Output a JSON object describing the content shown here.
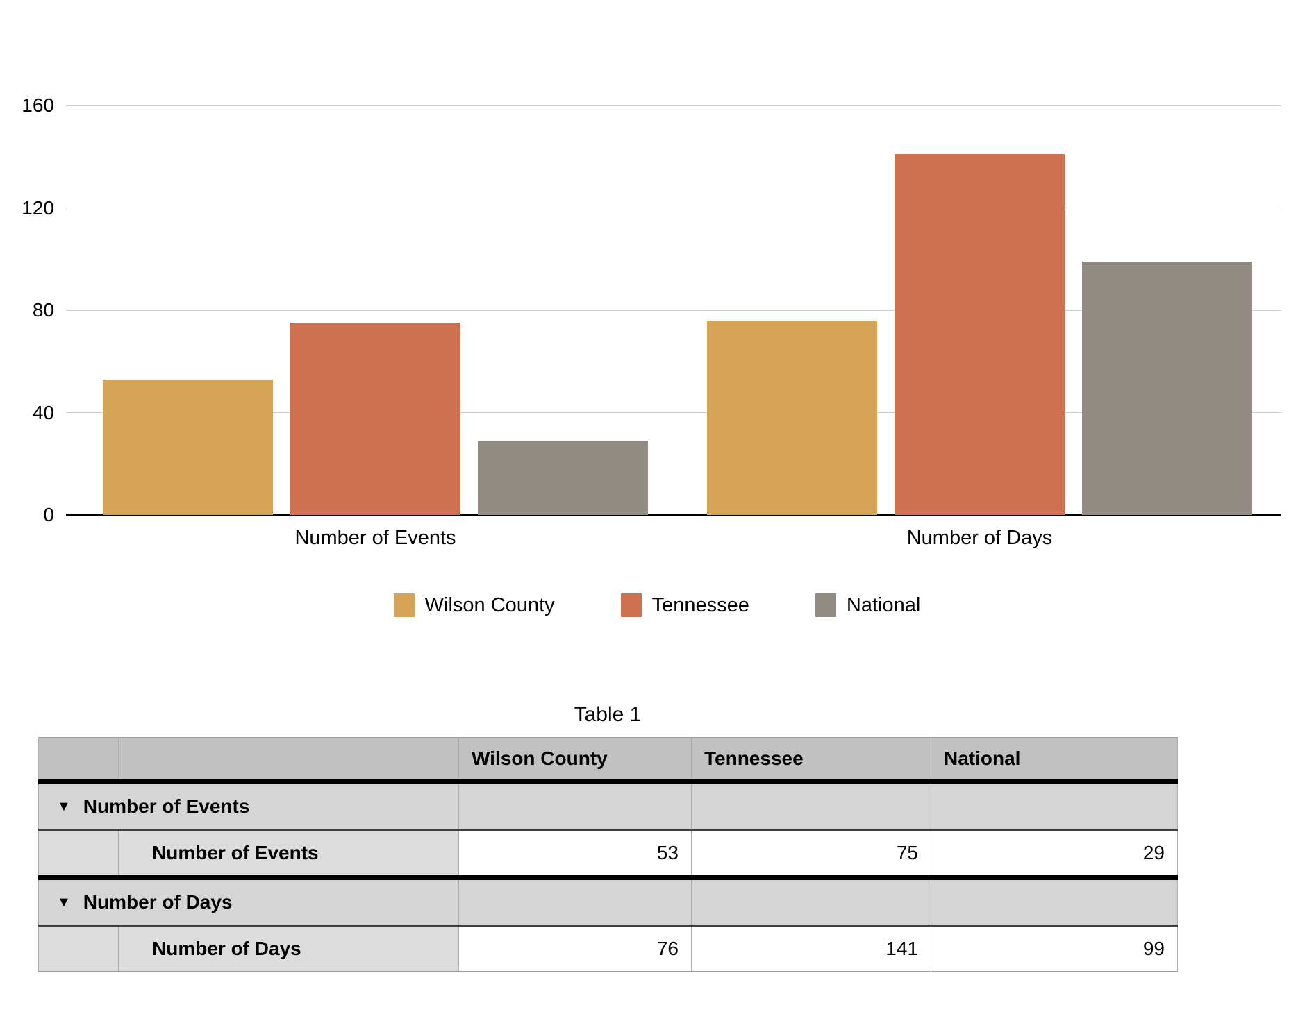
{
  "chart_data": {
    "type": "bar",
    "title": "",
    "xlabel": "",
    "ylabel": "",
    "categories": [
      "Number of Events",
      "Number of Days"
    ],
    "series": [
      {
        "name": "Wilson County",
        "color": "#D5A456",
        "values": [
          53,
          76
        ]
      },
      {
        "name": "Tennessee",
        "color": "#CD7150",
        "values": [
          75,
          141
        ]
      },
      {
        "name": "National",
        "color": "#928B82",
        "values": [
          29,
          99
        ]
      }
    ],
    "ylim": [
      0,
      160
    ],
    "yticks": [
      0,
      40,
      80,
      120,
      160
    ],
    "grid": true,
    "legend_position": "bottom"
  },
  "table": {
    "title": "Table 1",
    "disclosure_icon": "▼",
    "column_headers": [
      "Wilson County",
      "Tennessee",
      "National"
    ],
    "groups": [
      {
        "label": "Number of Events",
        "rows": [
          {
            "label": "Number of Events",
            "values": [
              53,
              75,
              29
            ]
          }
        ]
      },
      {
        "label": "Number of Days",
        "rows": [
          {
            "label": "Number of Days",
            "values": [
              76,
              141,
              99
            ]
          }
        ]
      }
    ]
  }
}
